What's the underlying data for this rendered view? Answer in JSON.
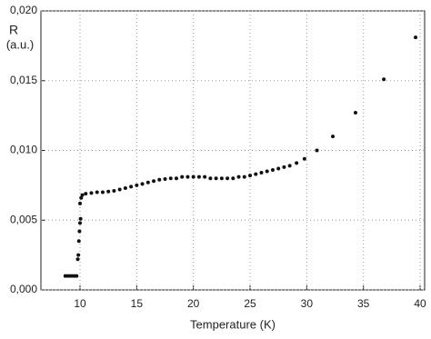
{
  "chart_data": {
    "type": "scatter",
    "x_label": "Temperature (K)",
    "y_label": "R",
    "y_unit_label": "(a.u.)",
    "xlim": [
      6.55,
      40.4
    ],
    "ylim": [
      0,
      0.02
    ],
    "xticks": [
      10,
      15,
      20,
      25,
      30,
      35,
      40
    ],
    "yticks": [
      {
        "value": 0,
        "label": "0,000"
      },
      {
        "value": 0.005,
        "label": "0,005"
      },
      {
        "value": 0.01,
        "label": "0,010"
      },
      {
        "value": 0.015,
        "label": "0,015"
      },
      {
        "value": 0.02,
        "label": "0,020"
      }
    ],
    "grid": true,
    "color": "#111111",
    "x": [
      8.7,
      8.9,
      9.1,
      9.3,
      9.5,
      9.7,
      9.8,
      9.85,
      9.9,
      9.95,
      10.0,
      10.05,
      10.0,
      10.1,
      10.2,
      10.5,
      11,
      11.5,
      12,
      12.5,
      13,
      13.5,
      14,
      14.5,
      15,
      15.5,
      16,
      16.5,
      17,
      17.5,
      18,
      18.5,
      19,
      19.5,
      20,
      20.5,
      21,
      21.5,
      22,
      22.5,
      23,
      23.5,
      24,
      24.5,
      25,
      25.5,
      26,
      26.5,
      27,
      27.5,
      28,
      28.5,
      29.1,
      29.8,
      30.9,
      32.3,
      34.3,
      36.8,
      39.6
    ],
    "values": [
      0.001,
      0.001,
      0.001,
      0.001,
      0.001,
      0.001,
      0.0022,
      0.0025,
      0.0035,
      0.0042,
      0.0048,
      0.0051,
      0.0062,
      0.0066,
      0.0068,
      0.0069,
      0.00695,
      0.007,
      0.007,
      0.00705,
      0.0071,
      0.0072,
      0.0073,
      0.0074,
      0.0075,
      0.0076,
      0.0077,
      0.0078,
      0.0079,
      0.00795,
      0.008,
      0.008,
      0.0081,
      0.0081,
      0.0081,
      0.0081,
      0.0081,
      0.008,
      0.008,
      0.008,
      0.008,
      0.008,
      0.0081,
      0.0081,
      0.0082,
      0.0083,
      0.0084,
      0.0085,
      0.0086,
      0.0087,
      0.0088,
      0.0089,
      0.0091,
      0.0094,
      0.01,
      0.011,
      0.0127,
      0.0151,
      0.0181
    ]
  }
}
